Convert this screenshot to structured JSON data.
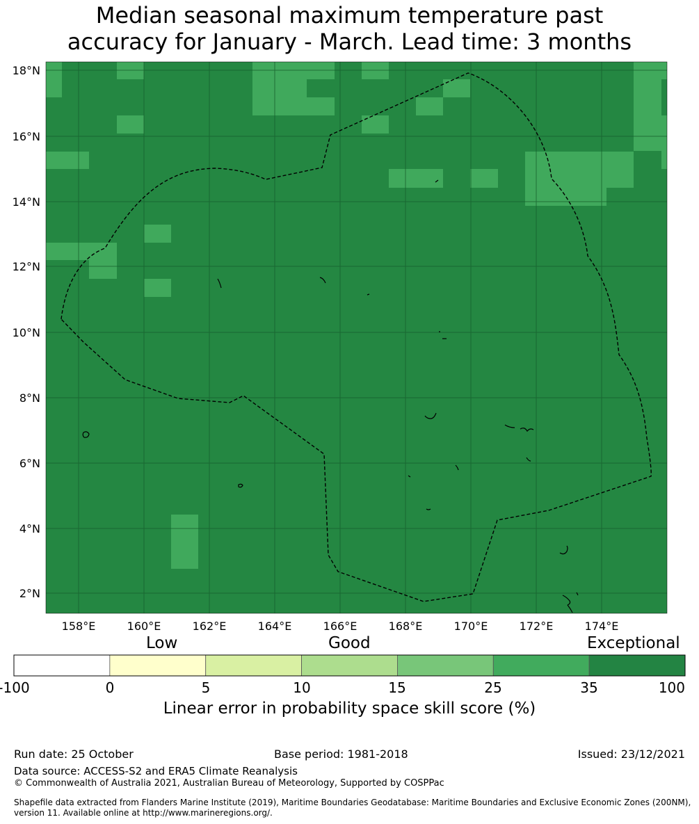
{
  "title": {
    "line1": "Median seasonal maximum temperature past",
    "line2": "accuracy for January - March. Lead time: 3 months"
  },
  "map": {
    "lon_ticks": [
      "158°E",
      "160°E",
      "162°E",
      "164°E",
      "166°E",
      "168°E",
      "170°E",
      "172°E",
      "174°E"
    ],
    "lat_ticks": [
      "18°N",
      "16°N",
      "14°N",
      "12°N",
      "10°N",
      "8°N",
      "6°N",
      "4°N",
      "2°N"
    ],
    "colors": {
      "exceptional_dark": "#248742",
      "band_25_35": "#40a95c"
    }
  },
  "colorbar": {
    "category_labels": {
      "low": "Low",
      "good": "Good",
      "exceptional": "Exceptional"
    },
    "tick_labels": [
      "-100",
      "0",
      "5",
      "10",
      "15",
      "25",
      "35",
      "100"
    ],
    "colors": [
      "#ffffff",
      "#ffffcc",
      "#d9f0a3",
      "#addd8e",
      "#78c679",
      "#41ab5d",
      "#238443"
    ],
    "label": "Linear error in probability space skill score (%)"
  },
  "footer": {
    "run_date": "Run date: 25 October",
    "base_period": "Base period: 1981-2018",
    "issued": "Issued: 23/12/2021",
    "data_source": "Data source: ACCESS-S2 and ERA5 Climate Reanalysis",
    "copyright": "© Commonwealth of Australia 2021, Australian Bureau of Meteorology, Supported by COSPPac",
    "shapefile_line1": "Shapefile data extracted from Flanders Marine Institute (2019), Maritime Boundaries Geodatabase: Maritime Boundaries and Exclusive Economic Zones (200NM),",
    "shapefile_line2": "version 11. Available online at http://www.marineregions.org/."
  }
}
